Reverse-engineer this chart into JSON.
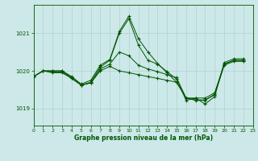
{
  "title": "Graphe pression niveau de la mer (hPa)",
  "bg_color": "#cce8e8",
  "grid_color": "#aacccc",
  "line_color": "#005500",
  "xlim": [
    0,
    23
  ],
  "ylim": [
    1018.55,
    1021.75
  ],
  "yticks": [
    1019,
    1020,
    1021
  ],
  "xtick_labels": [
    "0",
    "1",
    "2",
    "3",
    "4",
    "5",
    "6",
    "7",
    "8",
    "9",
    "10",
    "11",
    "12",
    "13",
    "14",
    "15",
    "16",
    "17",
    "18",
    "19",
    "20",
    "21",
    "22",
    "23"
  ],
  "xticks": [
    0,
    1,
    2,
    3,
    4,
    5,
    6,
    7,
    8,
    9,
    10,
    11,
    12,
    13,
    14,
    15,
    16,
    17,
    18,
    19,
    20,
    21,
    22,
    23
  ],
  "series": [
    {
      "x": [
        0,
        1,
        2,
        3,
        4,
        5,
        6,
        7,
        8,
        9,
        10,
        11,
        12,
        13,
        14,
        15,
        16,
        17,
        18,
        19,
        20,
        21,
        22
      ],
      "y": [
        1019.85,
        1020.0,
        1020.0,
        1020.0,
        1019.85,
        1019.65,
        1019.75,
        1020.15,
        1020.3,
        1021.05,
        1021.45,
        1020.85,
        1020.5,
        1020.2,
        1019.95,
        1019.7,
        1019.28,
        1019.28,
        1019.12,
        1019.32,
        1020.22,
        1020.32,
        1020.32
      ]
    },
    {
      "x": [
        0,
        1,
        2,
        3,
        4,
        5,
        6,
        7,
        8,
        9,
        10,
        11,
        12,
        13,
        14,
        15,
        16,
        17,
        18,
        19,
        20,
        21,
        22
      ],
      "y": [
        1019.85,
        1020.0,
        1019.97,
        1019.97,
        1019.8,
        1019.62,
        1019.68,
        1020.05,
        1020.18,
        1020.5,
        1020.4,
        1020.15,
        1020.05,
        1019.98,
        1019.9,
        1019.82,
        1019.28,
        1019.23,
        1019.23,
        1019.38,
        1020.18,
        1020.28,
        1020.28
      ]
    },
    {
      "x": [
        0,
        1,
        2,
        3,
        4,
        5,
        6,
        7,
        8,
        9,
        10,
        11,
        12,
        13,
        14,
        15,
        16,
        17,
        18,
        19,
        20,
        21,
        22
      ],
      "y": [
        1019.85,
        1020.0,
        1019.95,
        1019.95,
        1019.8,
        1019.63,
        1019.68,
        1020.0,
        1020.12,
        1020.0,
        1019.95,
        1019.9,
        1019.85,
        1019.8,
        1019.75,
        1019.7,
        1019.28,
        1019.22,
        1019.22,
        1019.37,
        1020.15,
        1020.25,
        1020.25
      ]
    },
    {
      "x": [
        0,
        1,
        2,
        3,
        4,
        5,
        6,
        7,
        8,
        9,
        10,
        11,
        12,
        13,
        14,
        15,
        16,
        17,
        18,
        19,
        20,
        21,
        22
      ],
      "y": [
        1019.85,
        1020.0,
        1020.0,
        1020.0,
        1019.82,
        1019.62,
        1019.7,
        1020.1,
        1020.28,
        1021.0,
        1021.38,
        1020.68,
        1020.28,
        1020.18,
        1019.98,
        1019.78,
        1019.22,
        1019.28,
        1019.28,
        1019.42,
        1020.18,
        1020.28,
        1020.28
      ]
    }
  ]
}
